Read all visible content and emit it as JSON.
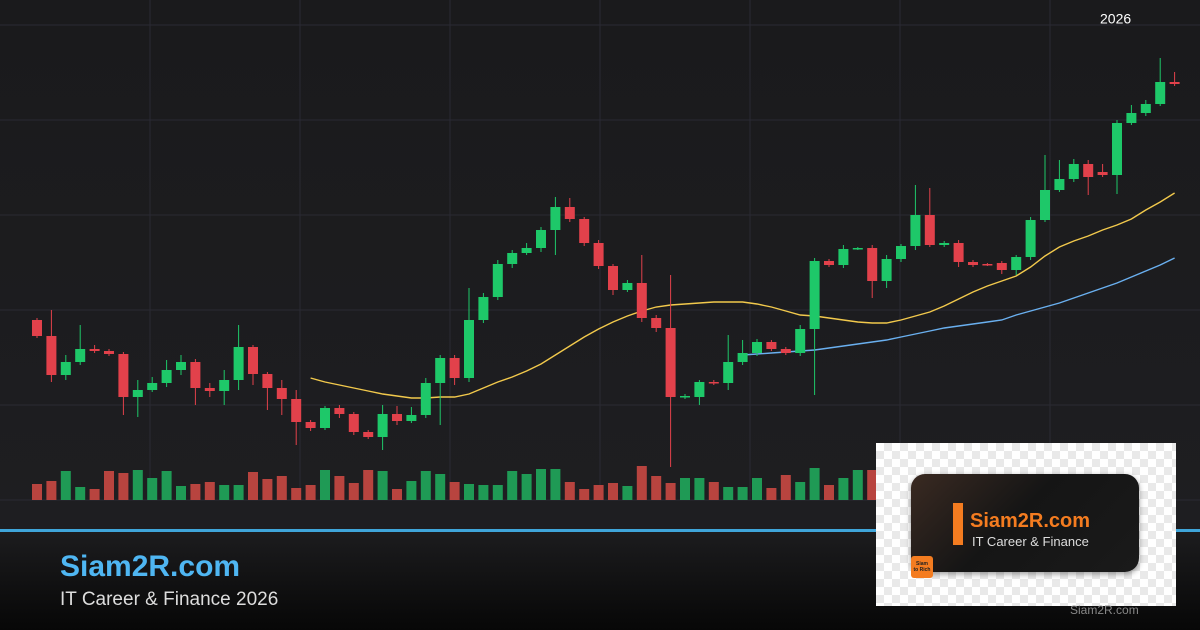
{
  "texts": {
    "year": "2026",
    "brand": "Siam2R.com",
    "tagline": "IT Career & Finance 2026",
    "badge_title": "Siam2R.com",
    "badge_subtitle": "IT Career & Finance",
    "logo_line1": "Siam",
    "logo_line2": "to Rich",
    "watermark": "Siam2R.com"
  },
  "chart_data": {
    "type": "candlestick",
    "ylim": [
      0,
      100
    ],
    "volume_lim": [
      0,
      100
    ],
    "up_color": "#1ec869",
    "down_color": "#e2414b",
    "volume_up_color": "#1f9a55",
    "volume_down_color": "#b8443f",
    "open": [
      42,
      38.8,
      31,
      33.6,
      36.2,
      35.8,
      35.2,
      26.6,
      28,
      29.4,
      32,
      33.6,
      28.4,
      27.8,
      30,
      36.6,
      31.2,
      28.4,
      26.2,
      21.6,
      20.4,
      24.4,
      23.2,
      19.6,
      18.6,
      23.2,
      21.8,
      23,
      29.4,
      34.4,
      30.4,
      42,
      46.6,
      53.2,
      55.4,
      56.4,
      60,
      64.6,
      62.2,
      57.4,
      52.8,
      48,
      49.4,
      42.4,
      40.4,
      26.6,
      26.6,
      29.6,
      29.4,
      33.6,
      35.4,
      37.6,
      36.2,
      35.4,
      40.2,
      53.8,
      53,
      56.2,
      56.4,
      49.8,
      54.2,
      56.8,
      63,
      57,
      57.4,
      53.6,
      53.2,
      53.4,
      52,
      54.6,
      62,
      68,
      70.2,
      73.2,
      71.6,
      71,
      81.4,
      83.4,
      85.2,
      89.6
    ],
    "close": [
      38.8,
      31,
      33.6,
      36.2,
      35.8,
      35.2,
      26.6,
      28,
      29.4,
      32,
      33.6,
      28.4,
      27.8,
      30,
      36.6,
      31.2,
      28.4,
      26.2,
      21.6,
      20.4,
      24.4,
      23.2,
      19.6,
      18.6,
      23.2,
      21.8,
      23,
      29.4,
      34.4,
      30.4,
      42,
      46.6,
      53.2,
      55.4,
      56.4,
      60,
      64.6,
      62.2,
      57.4,
      52.8,
      48,
      49.4,
      42.4,
      40.4,
      26.6,
      26.8,
      29.6,
      29.4,
      33.6,
      35.4,
      37.6,
      36.2,
      35.4,
      40.2,
      53.8,
      53,
      56.2,
      56.4,
      49.8,
      54.2,
      56.8,
      63,
      57,
      57.4,
      53.6,
      53,
      53,
      52,
      54.6,
      62,
      68,
      70.2,
      73.2,
      70.6,
      71,
      81.4,
      83.4,
      85.2,
      89.6,
      89.2
    ],
    "high": [
      42.4,
      44,
      35,
      41,
      37,
      36.2,
      35.6,
      30,
      30.6,
      34,
      35,
      34.2,
      29.4,
      32,
      41,
      37,
      31.6,
      30,
      28,
      22,
      24.8,
      25,
      23.6,
      20,
      25,
      24.8,
      24.6,
      30.4,
      35,
      35,
      48.4,
      47.4,
      54,
      56,
      57.4,
      60.6,
      66.6,
      66.4,
      62.6,
      58,
      53.2,
      50,
      55,
      43,
      51,
      27.2,
      30,
      30,
      39,
      38,
      38.2,
      38,
      36.6,
      41,
      54.4,
      54.2,
      57,
      56.6,
      57,
      55,
      57.2,
      69,
      68.4,
      57.8,
      58,
      54,
      53.4,
      53.8,
      55,
      62.6,
      75,
      74,
      74.2,
      74,
      73.2,
      82,
      85,
      86,
      94.4,
      91.6
    ],
    "low": [
      38.4,
      29.6,
      30,
      33,
      35.4,
      34.8,
      23,
      22.6,
      27.6,
      28.6,
      31,
      25,
      26.6,
      25,
      28,
      29,
      24,
      23,
      17,
      19.8,
      20,
      22.4,
      19,
      18.2,
      16,
      21,
      21.4,
      22.4,
      21,
      29,
      29.6,
      41.4,
      46,
      52.4,
      55,
      55.6,
      55,
      61.6,
      56.8,
      52.2,
      47,
      47.6,
      41.6,
      39.6,
      12.6,
      26.2,
      25,
      29,
      28,
      33,
      34.8,
      35.8,
      35,
      34.8,
      27,
      52.6,
      52.4,
      56,
      46.4,
      48.4,
      53.6,
      56,
      56.6,
      56.6,
      52.6,
      52.6,
      52.8,
      51.2,
      51,
      54,
      61.6,
      67.6,
      69.6,
      67,
      70.6,
      67.2,
      81,
      82.8,
      84.8,
      88.8
    ],
    "volume": [
      16,
      19,
      29,
      13,
      11,
      29,
      27,
      30,
      22,
      29,
      14,
      16,
      18,
      15,
      15,
      28,
      21,
      24,
      12,
      15,
      30,
      24,
      17,
      30,
      29,
      11,
      19,
      29,
      26,
      18,
      16,
      15,
      15,
      29,
      26,
      31,
      31,
      18,
      11,
      15,
      17,
      14,
      34,
      24,
      17,
      22,
      22,
      18,
      13,
      13,
      22,
      12,
      25,
      18,
      32,
      15,
      22,
      30,
      30,
      null,
      null,
      null,
      null,
      null,
      null,
      null,
      null,
      null,
      null,
      null,
      null,
      null,
      null,
      null,
      null,
      null,
      null,
      null,
      null,
      null
    ],
    "lines": [
      {
        "color": "#f2c94c",
        "values": [
          null,
          null,
          null,
          null,
          null,
          null,
          null,
          null,
          null,
          null,
          null,
          null,
          null,
          null,
          null,
          null,
          null,
          null,
          null,
          30.4,
          29.6,
          29,
          28.4,
          27.8,
          27.2,
          26.8,
          26.4,
          26.4,
          26.6,
          26.6,
          27.2,
          28.4,
          29.6,
          30.6,
          31.8,
          33.2,
          35,
          36.8,
          38.6,
          40.2,
          41.6,
          42.8,
          43.8,
          44.6,
          45,
          45.2,
          45.4,
          45.6,
          45.6,
          45.6,
          45.2,
          44.6,
          43.8,
          43,
          42.8,
          42.4,
          42,
          41.6,
          41.4,
          41.4,
          42,
          42.8,
          43.6,
          44.8,
          46.2,
          47.6,
          48.8,
          49.8,
          50.8,
          52.6,
          54.8,
          56.6,
          57.8,
          58.8,
          60,
          61,
          62.2,
          64,
          65.6,
          67.4
        ]
      },
      {
        "color": "#6ab0f0",
        "values": [
          null,
          null,
          null,
          null,
          null,
          null,
          null,
          null,
          null,
          null,
          null,
          null,
          null,
          null,
          null,
          null,
          null,
          null,
          null,
          null,
          null,
          null,
          null,
          null,
          null,
          null,
          null,
          null,
          null,
          null,
          null,
          null,
          null,
          null,
          null,
          null,
          null,
          null,
          null,
          null,
          null,
          null,
          null,
          null,
          null,
          null,
          null,
          null,
          null,
          35,
          35.2,
          35.4,
          35.6,
          35.8,
          36,
          36.4,
          36.8,
          37.2,
          37.6,
          38,
          38.6,
          39.2,
          39.8,
          40.4,
          40.8,
          41.2,
          41.6,
          42,
          43,
          43.8,
          44.6,
          45.4,
          46.4,
          47.4,
          48.4,
          49.4,
          50.6,
          51.8,
          53,
          54.4
        ]
      }
    ]
  }
}
